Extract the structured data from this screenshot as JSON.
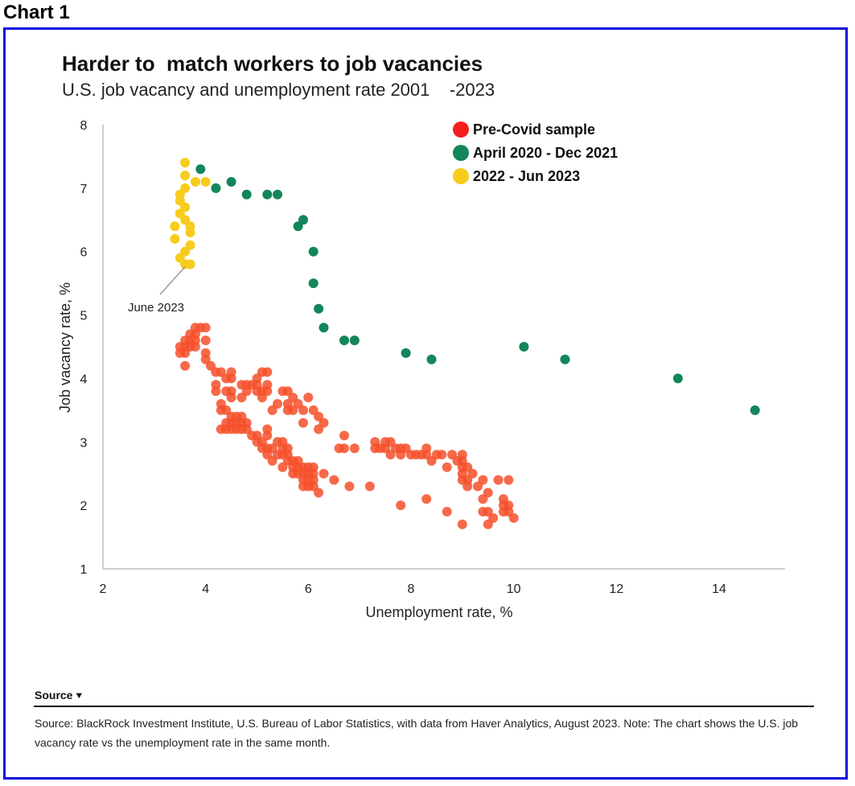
{
  "chart_label": "Chart 1",
  "colors": {
    "frame": "#0a0adc",
    "pre_covid": "#f5502a",
    "pandemic": "#13865a",
    "recent": "#f7cc1e",
    "axis": "#cccccc"
  },
  "source": {
    "heading": "Source",
    "toggle_icon": "chevron-double-down-icon",
    "text": "Source: BlackRock Investment Institute, U.S. Bureau of Labor Statistics, with data from Haver Analytics, August 2023. Note: The chart shows the U.S. job vacancy rate vs the unemployment rate in the same month."
  },
  "chart_data": {
    "type": "scatter",
    "title": "Harder to  match workers to job vacancies",
    "subtitle": "U.S. job vacancy and unemployment rate 2001    -2023",
    "xlabel": "Unemployment rate, %",
    "ylabel": "Job vacancy rate, %",
    "xlim": [
      2,
      15.3
    ],
    "ylim": [
      1,
      8
    ],
    "x_ticks": [
      2,
      4,
      6,
      8,
      10,
      12,
      14
    ],
    "y_ticks": [
      1,
      2,
      3,
      4,
      5,
      6,
      7,
      8
    ],
    "grid": false,
    "legend_position": "top-right",
    "annotations": [
      {
        "text": "June 2023",
        "x": 3.6,
        "y": 5.8
      }
    ],
    "series": [
      {
        "name": "Pre-Covid sample",
        "color": "#f5502a",
        "points": [
          [
            3.5,
            4.5
          ],
          [
            3.5,
            4.4
          ],
          [
            3.6,
            4.5
          ],
          [
            3.6,
            4.6
          ],
          [
            3.6,
            4.4
          ],
          [
            3.7,
            4.5
          ],
          [
            3.7,
            4.6
          ],
          [
            3.7,
            4.7
          ],
          [
            3.8,
            4.6
          ],
          [
            3.8,
            4.5
          ],
          [
            3.8,
            4.8
          ],
          [
            3.9,
            4.8
          ],
          [
            3.8,
            4.7
          ],
          [
            3.6,
            4.2
          ],
          [
            4.0,
            4.8
          ],
          [
            4.0,
            4.6
          ],
          [
            4.0,
            4.4
          ],
          [
            4.0,
            4.3
          ],
          [
            4.1,
            4.2
          ],
          [
            4.2,
            4.1
          ],
          [
            4.3,
            4.1
          ],
          [
            4.4,
            4.0
          ],
          [
            4.5,
            4.1
          ],
          [
            4.5,
            4.0
          ],
          [
            4.2,
            3.9
          ],
          [
            4.2,
            3.8
          ],
          [
            4.4,
            3.8
          ],
          [
            4.5,
            3.8
          ],
          [
            4.5,
            3.7
          ],
          [
            4.7,
            3.9
          ],
          [
            4.8,
            3.9
          ],
          [
            4.9,
            3.9
          ],
          [
            5.0,
            4.0
          ],
          [
            5.1,
            4.1
          ],
          [
            5.2,
            4.1
          ],
          [
            5.0,
            3.9
          ],
          [
            5.0,
            3.8
          ],
          [
            5.1,
            3.8
          ],
          [
            5.2,
            3.9
          ],
          [
            5.2,
            3.8
          ],
          [
            4.8,
            3.8
          ],
          [
            4.7,
            3.7
          ],
          [
            5.1,
            3.7
          ],
          [
            5.5,
            3.8
          ],
          [
            5.6,
            3.8
          ],
          [
            5.7,
            3.7
          ],
          [
            5.6,
            3.6
          ],
          [
            5.8,
            3.6
          ],
          [
            6.0,
            3.7
          ],
          [
            4.3,
            3.6
          ],
          [
            4.3,
            3.5
          ],
          [
            4.4,
            3.5
          ],
          [
            4.5,
            3.4
          ],
          [
            4.6,
            3.4
          ],
          [
            4.7,
            3.4
          ],
          [
            4.4,
            3.3
          ],
          [
            4.5,
            3.3
          ],
          [
            4.6,
            3.3
          ],
          [
            4.7,
            3.3
          ],
          [
            4.8,
            3.3
          ],
          [
            4.3,
            3.2
          ],
          [
            4.4,
            3.2
          ],
          [
            4.5,
            3.2
          ],
          [
            4.6,
            3.2
          ],
          [
            4.7,
            3.2
          ],
          [
            4.8,
            3.2
          ],
          [
            5.3,
            3.5
          ],
          [
            5.4,
            3.6
          ],
          [
            5.6,
            3.5
          ],
          [
            5.7,
            3.5
          ],
          [
            5.9,
            3.5
          ],
          [
            6.1,
            3.5
          ],
          [
            6.2,
            3.4
          ],
          [
            6.3,
            3.3
          ],
          [
            5.9,
            3.3
          ],
          [
            6.2,
            3.2
          ],
          [
            4.9,
            3.1
          ],
          [
            5.0,
            3.0
          ],
          [
            5.1,
            3.0
          ],
          [
            5.2,
            3.1
          ],
          [
            5.2,
            3.2
          ],
          [
            5.0,
            3.1
          ],
          [
            5.1,
            2.9
          ],
          [
            5.2,
            2.9
          ],
          [
            5.3,
            2.9
          ],
          [
            5.4,
            3.0
          ],
          [
            5.5,
            2.9
          ],
          [
            5.5,
            2.8
          ],
          [
            5.6,
            2.8
          ],
          [
            5.4,
            2.8
          ],
          [
            5.2,
            2.8
          ],
          [
            5.7,
            2.7
          ],
          [
            5.8,
            2.7
          ],
          [
            5.6,
            2.7
          ],
          [
            5.5,
            2.6
          ],
          [
            5.7,
            2.6
          ],
          [
            5.8,
            2.6
          ],
          [
            5.9,
            2.6
          ],
          [
            6.0,
            2.6
          ],
          [
            5.7,
            2.5
          ],
          [
            5.9,
            2.5
          ],
          [
            6.0,
            2.5
          ],
          [
            6.1,
            2.6
          ],
          [
            6.1,
            2.5
          ],
          [
            5.9,
            2.4
          ],
          [
            6.0,
            2.4
          ],
          [
            6.1,
            2.4
          ],
          [
            5.9,
            2.3
          ],
          [
            6.0,
            2.3
          ],
          [
            6.1,
            2.3
          ],
          [
            6.2,
            2.2
          ],
          [
            5.5,
            3.0
          ],
          [
            5.6,
            2.9
          ],
          [
            5.3,
            2.7
          ],
          [
            5.8,
            2.5
          ],
          [
            6.3,
            2.5
          ],
          [
            6.5,
            2.4
          ],
          [
            6.8,
            2.3
          ],
          [
            6.6,
            2.9
          ],
          [
            6.7,
            2.9
          ],
          [
            6.9,
            2.9
          ],
          [
            6.7,
            3.1
          ],
          [
            7.3,
            3.0
          ],
          [
            7.3,
            2.9
          ],
          [
            7.4,
            2.9
          ],
          [
            7.5,
            3.0
          ],
          [
            7.5,
            2.9
          ],
          [
            7.6,
            3.0
          ],
          [
            7.6,
            2.8
          ],
          [
            7.7,
            2.9
          ],
          [
            7.8,
            2.9
          ],
          [
            7.8,
            2.8
          ],
          [
            7.9,
            2.9
          ],
          [
            8.0,
            2.8
          ],
          [
            8.1,
            2.8
          ],
          [
            8.2,
            2.8
          ],
          [
            8.3,
            2.8
          ],
          [
            8.3,
            2.9
          ],
          [
            8.4,
            2.7
          ],
          [
            8.5,
            2.8
          ],
          [
            8.7,
            2.6
          ],
          [
            8.9,
            2.7
          ],
          [
            9.0,
            2.8
          ],
          [
            9.0,
            2.7
          ],
          [
            9.0,
            2.5
          ],
          [
            9.1,
            2.6
          ],
          [
            9.0,
            2.4
          ],
          [
            9.1,
            2.4
          ],
          [
            9.1,
            2.3
          ],
          [
            8.8,
            2.8
          ],
          [
            8.6,
            2.8
          ],
          [
            7.2,
            2.3
          ],
          [
            7.8,
            2.0
          ],
          [
            8.3,
            2.1
          ],
          [
            8.7,
            1.9
          ],
          [
            9.0,
            1.7
          ],
          [
            9.3,
            2.3
          ],
          [
            9.4,
            2.4
          ],
          [
            9.4,
            2.1
          ],
          [
            9.4,
            1.9
          ],
          [
            9.5,
            2.2
          ],
          [
            9.5,
            1.9
          ],
          [
            9.5,
            1.7
          ],
          [
            9.6,
            1.8
          ],
          [
            9.7,
            2.4
          ],
          [
            9.8,
            2.1
          ],
          [
            9.8,
            2.0
          ],
          [
            9.8,
            1.9
          ],
          [
            9.9,
            2.4
          ],
          [
            9.9,
            2.0
          ],
          [
            9.9,
            1.9
          ],
          [
            10.0,
            1.8
          ],
          [
            9.0,
            2.6
          ],
          [
            9.2,
            2.5
          ]
        ]
      },
      {
        "name": "April 2020 - Dec 2021",
        "color": "#13865a",
        "points": [
          [
            3.9,
            7.3
          ],
          [
            4.2,
            7.0
          ],
          [
            4.5,
            7.1
          ],
          [
            4.8,
            6.9
          ],
          [
            5.2,
            6.9
          ],
          [
            5.4,
            6.9
          ],
          [
            5.8,
            6.4
          ],
          [
            5.9,
            6.5
          ],
          [
            6.1,
            6.0
          ],
          [
            6.1,
            5.5
          ],
          [
            6.2,
            5.1
          ],
          [
            6.3,
            4.8
          ],
          [
            6.7,
            4.6
          ],
          [
            6.9,
            4.6
          ],
          [
            7.9,
            4.4
          ],
          [
            8.4,
            4.3
          ],
          [
            10.2,
            4.5
          ],
          [
            11.0,
            4.3
          ],
          [
            13.2,
            4.0
          ],
          [
            14.7,
            3.5
          ]
        ]
      },
      {
        "name": "2022 - Jun 2023",
        "color": "#f7cc1e",
        "points": [
          [
            3.6,
            7.4
          ],
          [
            3.6,
            7.2
          ],
          [
            3.6,
            7.0
          ],
          [
            3.8,
            7.1
          ],
          [
            4.0,
            7.1
          ],
          [
            3.5,
            6.9
          ],
          [
            3.5,
            6.8
          ],
          [
            3.6,
            6.7
          ],
          [
            3.5,
            6.6
          ],
          [
            3.6,
            6.5
          ],
          [
            3.4,
            6.4
          ],
          [
            3.7,
            6.4
          ],
          [
            3.7,
            6.3
          ],
          [
            3.4,
            6.2
          ],
          [
            3.7,
            6.1
          ],
          [
            3.6,
            6.0
          ],
          [
            3.5,
            5.9
          ],
          [
            3.6,
            5.8
          ],
          [
            3.7,
            5.8
          ]
        ]
      }
    ]
  }
}
